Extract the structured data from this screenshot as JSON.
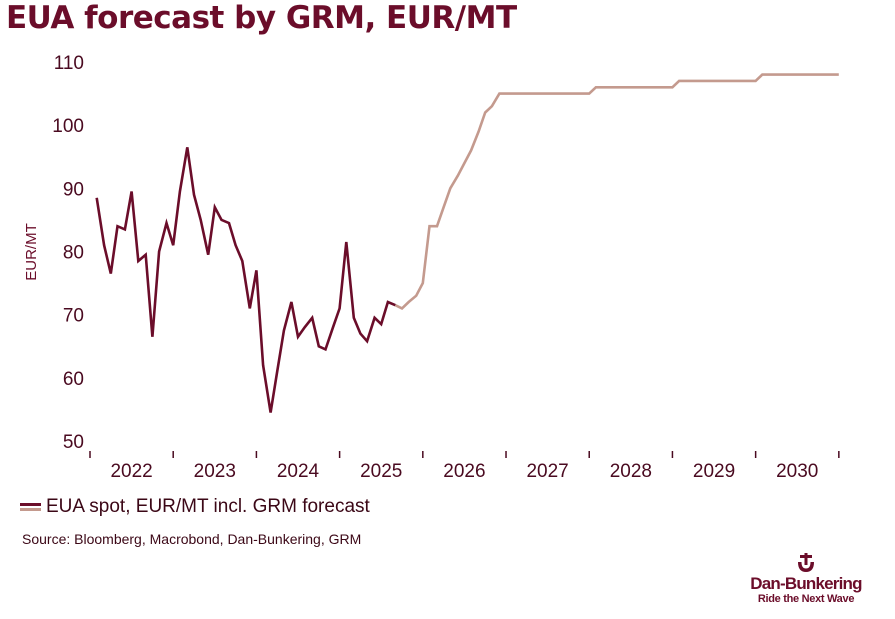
{
  "colors": {
    "history": "#6b0d2a",
    "forecast": "#c49a8e",
    "axis": "#4a0a20"
  },
  "chart_data": {
    "type": "line",
    "title": "EUA forecast by GRM, EUR/MT",
    "ylabel": "EUR/MT",
    "xlabel": "",
    "ylim": [
      50,
      110
    ],
    "yticks": [
      50,
      60,
      70,
      80,
      90,
      100,
      110
    ],
    "xlim": [
      2021.5,
      2030.55
    ],
    "x_year_labels": [
      "2022",
      "2023",
      "2024",
      "2025",
      "2026",
      "2027",
      "2028",
      "2029",
      "2030"
    ],
    "x_tick_boundaries": [
      2021.5,
      2022.5,
      2023.5,
      2024.5,
      2025.5,
      2026.5,
      2027.5,
      2028.5,
      2029.5,
      2030.5
    ],
    "series": [
      {
        "name": "EUA spot, EUR/MT",
        "role": "history",
        "x": [
          2021.58,
          2021.67,
          2021.75,
          2021.83,
          2021.92,
          2022.0,
          2022.08,
          2022.17,
          2022.25,
          2022.33,
          2022.42,
          2022.5,
          2022.58,
          2022.67,
          2022.75,
          2022.83,
          2022.92,
          2023.0,
          2023.08,
          2023.17,
          2023.25,
          2023.33,
          2023.42,
          2023.5,
          2023.58,
          2023.67,
          2023.75,
          2023.83,
          2023.92,
          2024.0,
          2024.08,
          2024.17,
          2024.25,
          2024.33,
          2024.42,
          2024.5,
          2024.58,
          2024.67,
          2024.75,
          2024.83,
          2024.92,
          2025.0,
          2025.08,
          2025.17
        ],
        "values": [
          88.5,
          81,
          76.5,
          84,
          83.5,
          89.5,
          78.5,
          79.5,
          66.5,
          80,
          84.5,
          81,
          89.5,
          96.5,
          89,
          85,
          79.5,
          87,
          85,
          84.5,
          81,
          78.5,
          71,
          77,
          62,
          54.5,
          61,
          67.5,
          72,
          66.5,
          68,
          69.5,
          65,
          64.5,
          68,
          71,
          81.5,
          69.5,
          67,
          65.8,
          69.5,
          68.5,
          72,
          71.5
        ]
      },
      {
        "name": "GRM forecast",
        "role": "forecast",
        "x": [
          2025.17,
          2025.25,
          2025.33,
          2025.42,
          2025.5,
          2025.58,
          2025.67,
          2025.75,
          2025.83,
          2025.92,
          2026.0,
          2026.08,
          2026.17,
          2026.25,
          2026.33,
          2026.42,
          2026.5,
          2026.75,
          2027.0,
          2027.25,
          2027.5,
          2027.58,
          2027.75,
          2028.0,
          2028.25,
          2028.5,
          2028.58,
          2028.75,
          2029.0,
          2029.25,
          2029.5,
          2029.58,
          2029.75,
          2030.0,
          2030.25,
          2030.5
        ],
        "values": [
          71.5,
          71,
          72,
          73,
          75,
          84,
          84,
          87,
          90,
          92,
          94,
          96,
          99,
          102,
          103,
          105,
          105,
          105,
          105,
          105,
          105,
          106,
          106,
          106,
          106,
          106,
          107,
          107,
          107,
          107,
          107,
          108,
          108,
          108,
          108,
          108
        ]
      }
    ],
    "legend": "EUA spot, EUR/MT incl. GRM forecast",
    "legend_position": "bottom-left"
  },
  "source": "Source: Bloomberg, Macrobond, Dan-Bunkering, GRM",
  "logo": {
    "name": "Dan-Bunkering",
    "tagline": "Ride the Next Wave"
  }
}
